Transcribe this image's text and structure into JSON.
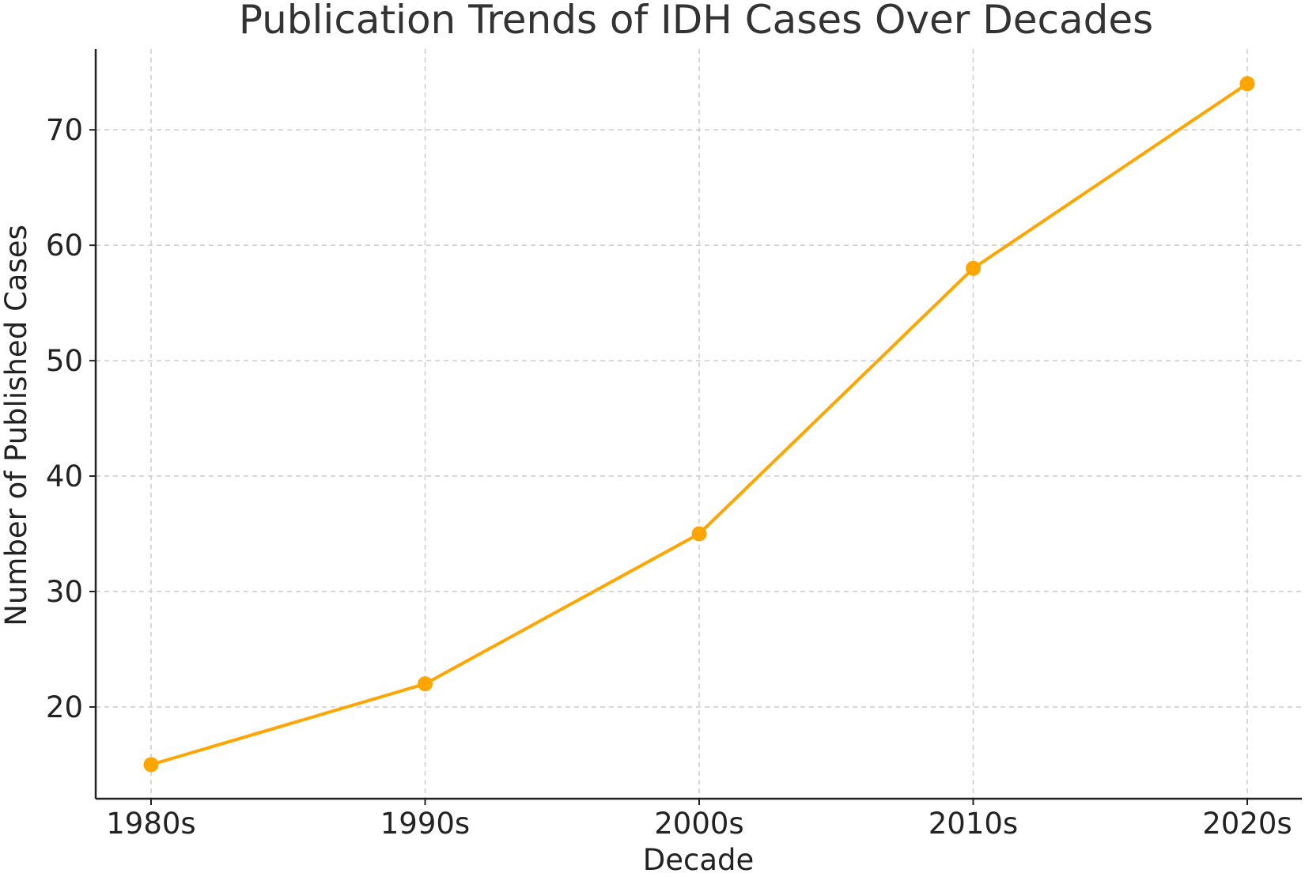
{
  "chart_data": {
    "type": "line",
    "title": "Publication Trends of IDH Cases Over Decades",
    "xlabel": "Decade",
    "ylabel": "Number of Published Cases",
    "categories": [
      "1980s",
      "1990s",
      "2000s",
      "2010s",
      "2020s"
    ],
    "series": [
      {
        "values": [
          15,
          22,
          35,
          58,
          74
        ],
        "color": "#FFA500",
        "marker": "circle"
      }
    ],
    "ylim": [
      12.05,
      77
    ],
    "yticks": [
      20,
      30,
      40,
      50,
      60,
      70
    ],
    "grid": true,
    "legend": "none"
  }
}
